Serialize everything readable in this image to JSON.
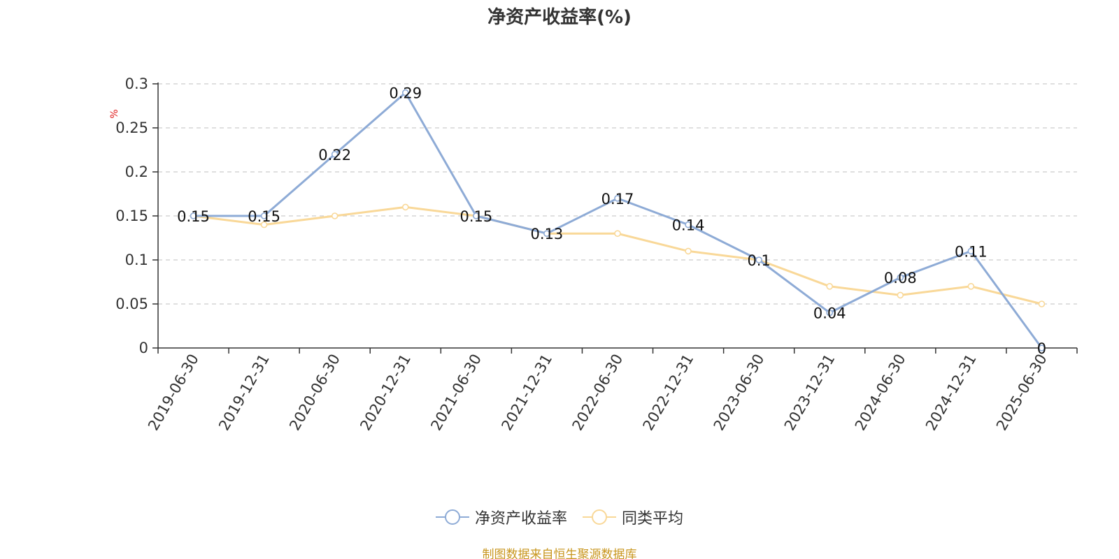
{
  "chart_data": {
    "type": "line",
    "title": "净资产收益率(%)",
    "ylabel": "%",
    "xlabel": "",
    "ylim": [
      0,
      0.3
    ],
    "yticks": [
      0,
      0.05,
      0.1,
      0.15,
      0.2,
      0.25,
      0.3
    ],
    "ytick_labels": [
      "0",
      "0.05",
      "0.1",
      "0.15",
      "0.2",
      "0.25",
      "0.3"
    ],
    "grid": true,
    "legend_position": "bottom",
    "categories": [
      "2019-06-30",
      "2019-12-31",
      "2020-06-30",
      "2020-12-31",
      "2021-06-30",
      "2021-12-31",
      "2022-06-30",
      "2022-12-31",
      "2023-06-30",
      "2023-12-31",
      "2024-06-30",
      "2024-12-31",
      "2025-06-30"
    ],
    "series": [
      {
        "name": "净资产收益率",
        "color": "#8eabd6",
        "values": [
          0.15,
          0.15,
          0.22,
          0.29,
          0.15,
          0.13,
          0.17,
          0.14,
          0.1,
          0.04,
          0.08,
          0.11,
          0
        ],
        "data_labels": [
          "0.15",
          "0.15",
          "0.22",
          "0.29",
          "0.15",
          "0.13",
          "0.17",
          "0.14",
          "0.1",
          "0.04",
          "0.08",
          "0.11",
          "0"
        ]
      },
      {
        "name": "同类平均",
        "color": "#f9d898",
        "values": [
          0.15,
          0.14,
          0.15,
          0.16,
          0.15,
          0.13,
          0.13,
          0.11,
          0.1,
          0.07,
          0.06,
          0.07,
          0.05
        ]
      }
    ]
  },
  "footer": {
    "source": "制图数据来自恒生聚源数据库"
  }
}
